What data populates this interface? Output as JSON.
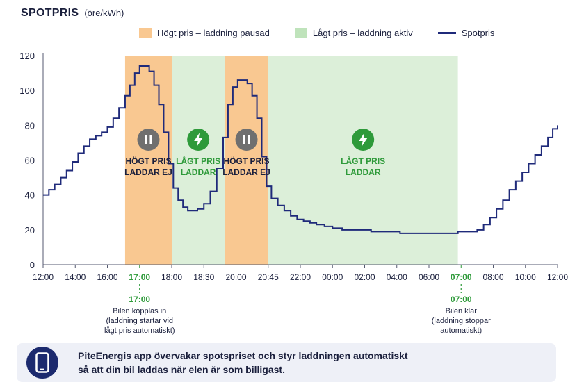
{
  "chart_data": {
    "type": "line",
    "title": "SPOTPRIS",
    "unit": "(öre/kWh)",
    "legend": [
      {
        "label": "Högt pris – laddning pausad",
        "color": "#f9c891"
      },
      {
        "label": "Lågt pris – laddning aktiv",
        "color": "#dcefd9"
      },
      {
        "label": "Spotpris",
        "color": "#1f2a7a"
      }
    ],
    "ylim": [
      0,
      120
    ],
    "yticks": [
      0,
      20,
      40,
      60,
      80,
      100,
      120
    ],
    "x_ticks": [
      {
        "label": "12:00",
        "pos": 0
      },
      {
        "label": "14:00",
        "pos": 1
      },
      {
        "label": "16:00",
        "pos": 2
      },
      {
        "label": "17:00",
        "pos": 3,
        "green": true
      },
      {
        "label": "18:00",
        "pos": 4
      },
      {
        "label": "18:30",
        "pos": 5
      },
      {
        "label": "20:00",
        "pos": 6
      },
      {
        "label": "20:45",
        "pos": 7
      },
      {
        "label": "22:00",
        "pos": 8
      },
      {
        "label": "00:00",
        "pos": 9
      },
      {
        "label": "02:00",
        "pos": 10
      },
      {
        "label": "04:00",
        "pos": 11
      },
      {
        "label": "06:00",
        "pos": 12
      },
      {
        "label": "07:00",
        "pos": 13,
        "green": true
      },
      {
        "label": "08:00",
        "pos": 14
      },
      {
        "label": "10:00",
        "pos": 15
      },
      {
        "label": "12:00",
        "pos": 16
      }
    ],
    "bands": [
      {
        "kind": "high",
        "start": 2.55,
        "end": 4.0,
        "icon": "pause",
        "label": [
          "HÖGT PRIS",
          "LADDAR EJ"
        ]
      },
      {
        "kind": "low",
        "start": 4.0,
        "end": 5.65,
        "icon": "bolt",
        "label": [
          "LÅGT PRIS",
          "LADDAR"
        ]
      },
      {
        "kind": "high",
        "start": 5.65,
        "end": 7.0,
        "icon": "pause",
        "label": [
          "HÖGT PRIS",
          "LADDAR EJ"
        ]
      },
      {
        "kind": "low",
        "start": 7.0,
        "end": 12.9,
        "icon": "bolt",
        "label": [
          "LÅGT PRIS",
          "LADDAR"
        ]
      }
    ],
    "series": [
      {
        "name": "Spotpris",
        "x": [
          0,
          0.18,
          0.36,
          0.55,
          0.73,
          0.91,
          1.09,
          1.27,
          1.45,
          1.64,
          1.82,
          2.0,
          2.18,
          2.36,
          2.55,
          2.7,
          2.85,
          3.0,
          3.15,
          3.3,
          3.45,
          3.6,
          3.75,
          3.9,
          4.05,
          4.2,
          4.35,
          4.5,
          4.65,
          4.8,
          5.0,
          5.2,
          5.4,
          5.6,
          5.75,
          5.9,
          6.05,
          6.2,
          6.35,
          6.5,
          6.65,
          6.8,
          6.95,
          7.1,
          7.3,
          7.5,
          7.7,
          7.9,
          8.1,
          8.3,
          8.5,
          8.75,
          9.0,
          9.3,
          9.6,
          9.9,
          10.2,
          10.5,
          10.8,
          11.1,
          11.4,
          11.7,
          12.0,
          12.3,
          12.6,
          12.9,
          13.1,
          13.3,
          13.5,
          13.7,
          13.9,
          14.1,
          14.3,
          14.5,
          14.7,
          14.9,
          15.1,
          15.3,
          15.5,
          15.7,
          15.85,
          16.0
        ],
        "values": [
          40,
          43,
          46,
          50,
          54,
          59,
          64,
          68,
          72,
          74,
          76,
          79,
          84,
          90,
          97,
          103,
          110,
          114,
          114,
          111,
          103,
          92,
          76,
          58,
          44,
          37,
          33,
          31,
          31,
          32,
          35,
          42,
          55,
          73,
          92,
          102,
          106,
          106,
          104,
          97,
          84,
          62,
          45,
          38,
          34,
          31,
          28,
          26,
          25,
          24,
          23,
          22,
          21,
          20,
          20,
          20,
          19,
          19,
          19,
          18,
          18,
          18,
          18,
          18,
          18,
          19,
          19,
          19,
          20,
          23,
          27,
          32,
          37,
          43,
          48,
          53,
          58,
          63,
          68,
          73,
          78,
          80
        ]
      }
    ],
    "annotations": [
      {
        "pos": 3,
        "time": "17:00",
        "lines": [
          "Bilen kopplas in",
          "(laddning startar vid",
          "lågt pris automatiskt)"
        ]
      },
      {
        "pos": 13,
        "time": "07:00",
        "lines": [
          "Bilen klar",
          "(laddning stoppar",
          "automatiskt)"
        ]
      }
    ]
  },
  "footer": {
    "icon": "phone-icon",
    "line1": "PiteEnergis app övervakar spotspriset och styr laddningen automatiskt",
    "line2": "så att din bil laddas när elen är som billigast."
  }
}
